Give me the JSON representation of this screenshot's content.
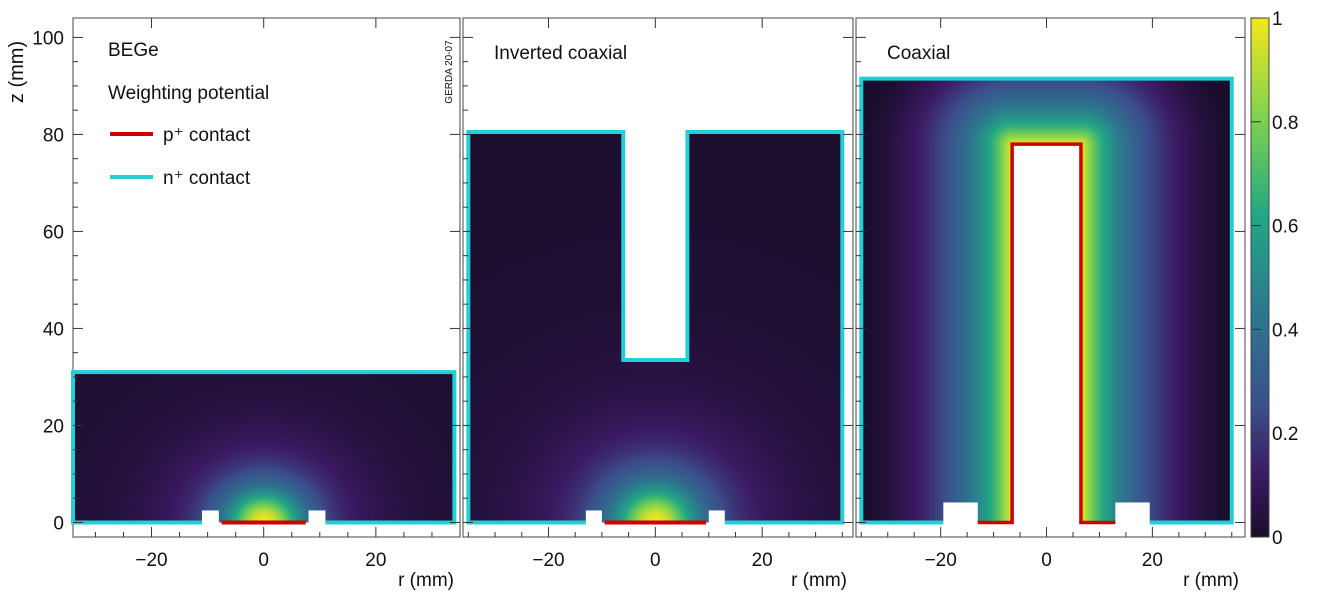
{
  "chart_data": {
    "type": "heatmap",
    "y_axis": {
      "label": "z (mm)",
      "range": [
        -3,
        104
      ],
      "ticks": [
        0,
        20,
        40,
        60,
        80,
        100
      ]
    },
    "colorbar": {
      "range": [
        0,
        1
      ],
      "ticks": [
        "0",
        "0.2",
        "0.4",
        "0.6",
        "0.8",
        "1"
      ],
      "colormap": "viridis"
    },
    "watermark": "GERDA 20-07",
    "legend": {
      "title_line1": "BEGe",
      "title_line2": "Weighting potential",
      "items": [
        {
          "label": "p⁺ contact",
          "color": "#cc0000"
        },
        {
          "label": "n⁺ contact",
          "color": "#22cfd6"
        }
      ],
      "placement": "top-left"
    },
    "panels": [
      {
        "name": "BEGe",
        "x_axis": {
          "label": "r (mm)",
          "range": [
            -34,
            35
          ],
          "ticks": [
            -20,
            0,
            20
          ]
        },
        "shape": "bege",
        "radius": 34,
        "height": 31,
        "p_contact_half_width": 7.5,
        "groove_inner": 8,
        "groove_outer": 11
      },
      {
        "name": "Inverted coaxial",
        "x_axis": {
          "label": "r (mm)",
          "range": [
            -36,
            37
          ],
          "ticks": [
            -20,
            0,
            20
          ]
        },
        "shape": "icoax",
        "radius": 35,
        "height": 80.5,
        "bore_radius": 6,
        "bore_bottom": 33.5,
        "p_contact_half_width": 9.5,
        "groove_inner": 10,
        "groove_outer": 13
      },
      {
        "name": "Coaxial",
        "x_axis": {
          "label": "r (mm)",
          "range": [
            -36,
            37.5
          ],
          "ticks": [
            -20,
            0,
            20
          ]
        },
        "shape": "coax",
        "radius": 35,
        "height": 91.5,
        "bore_radius": 6.5,
        "bore_top": 78,
        "groove_inner": 13,
        "groove_outer": 19.5
      }
    ]
  }
}
